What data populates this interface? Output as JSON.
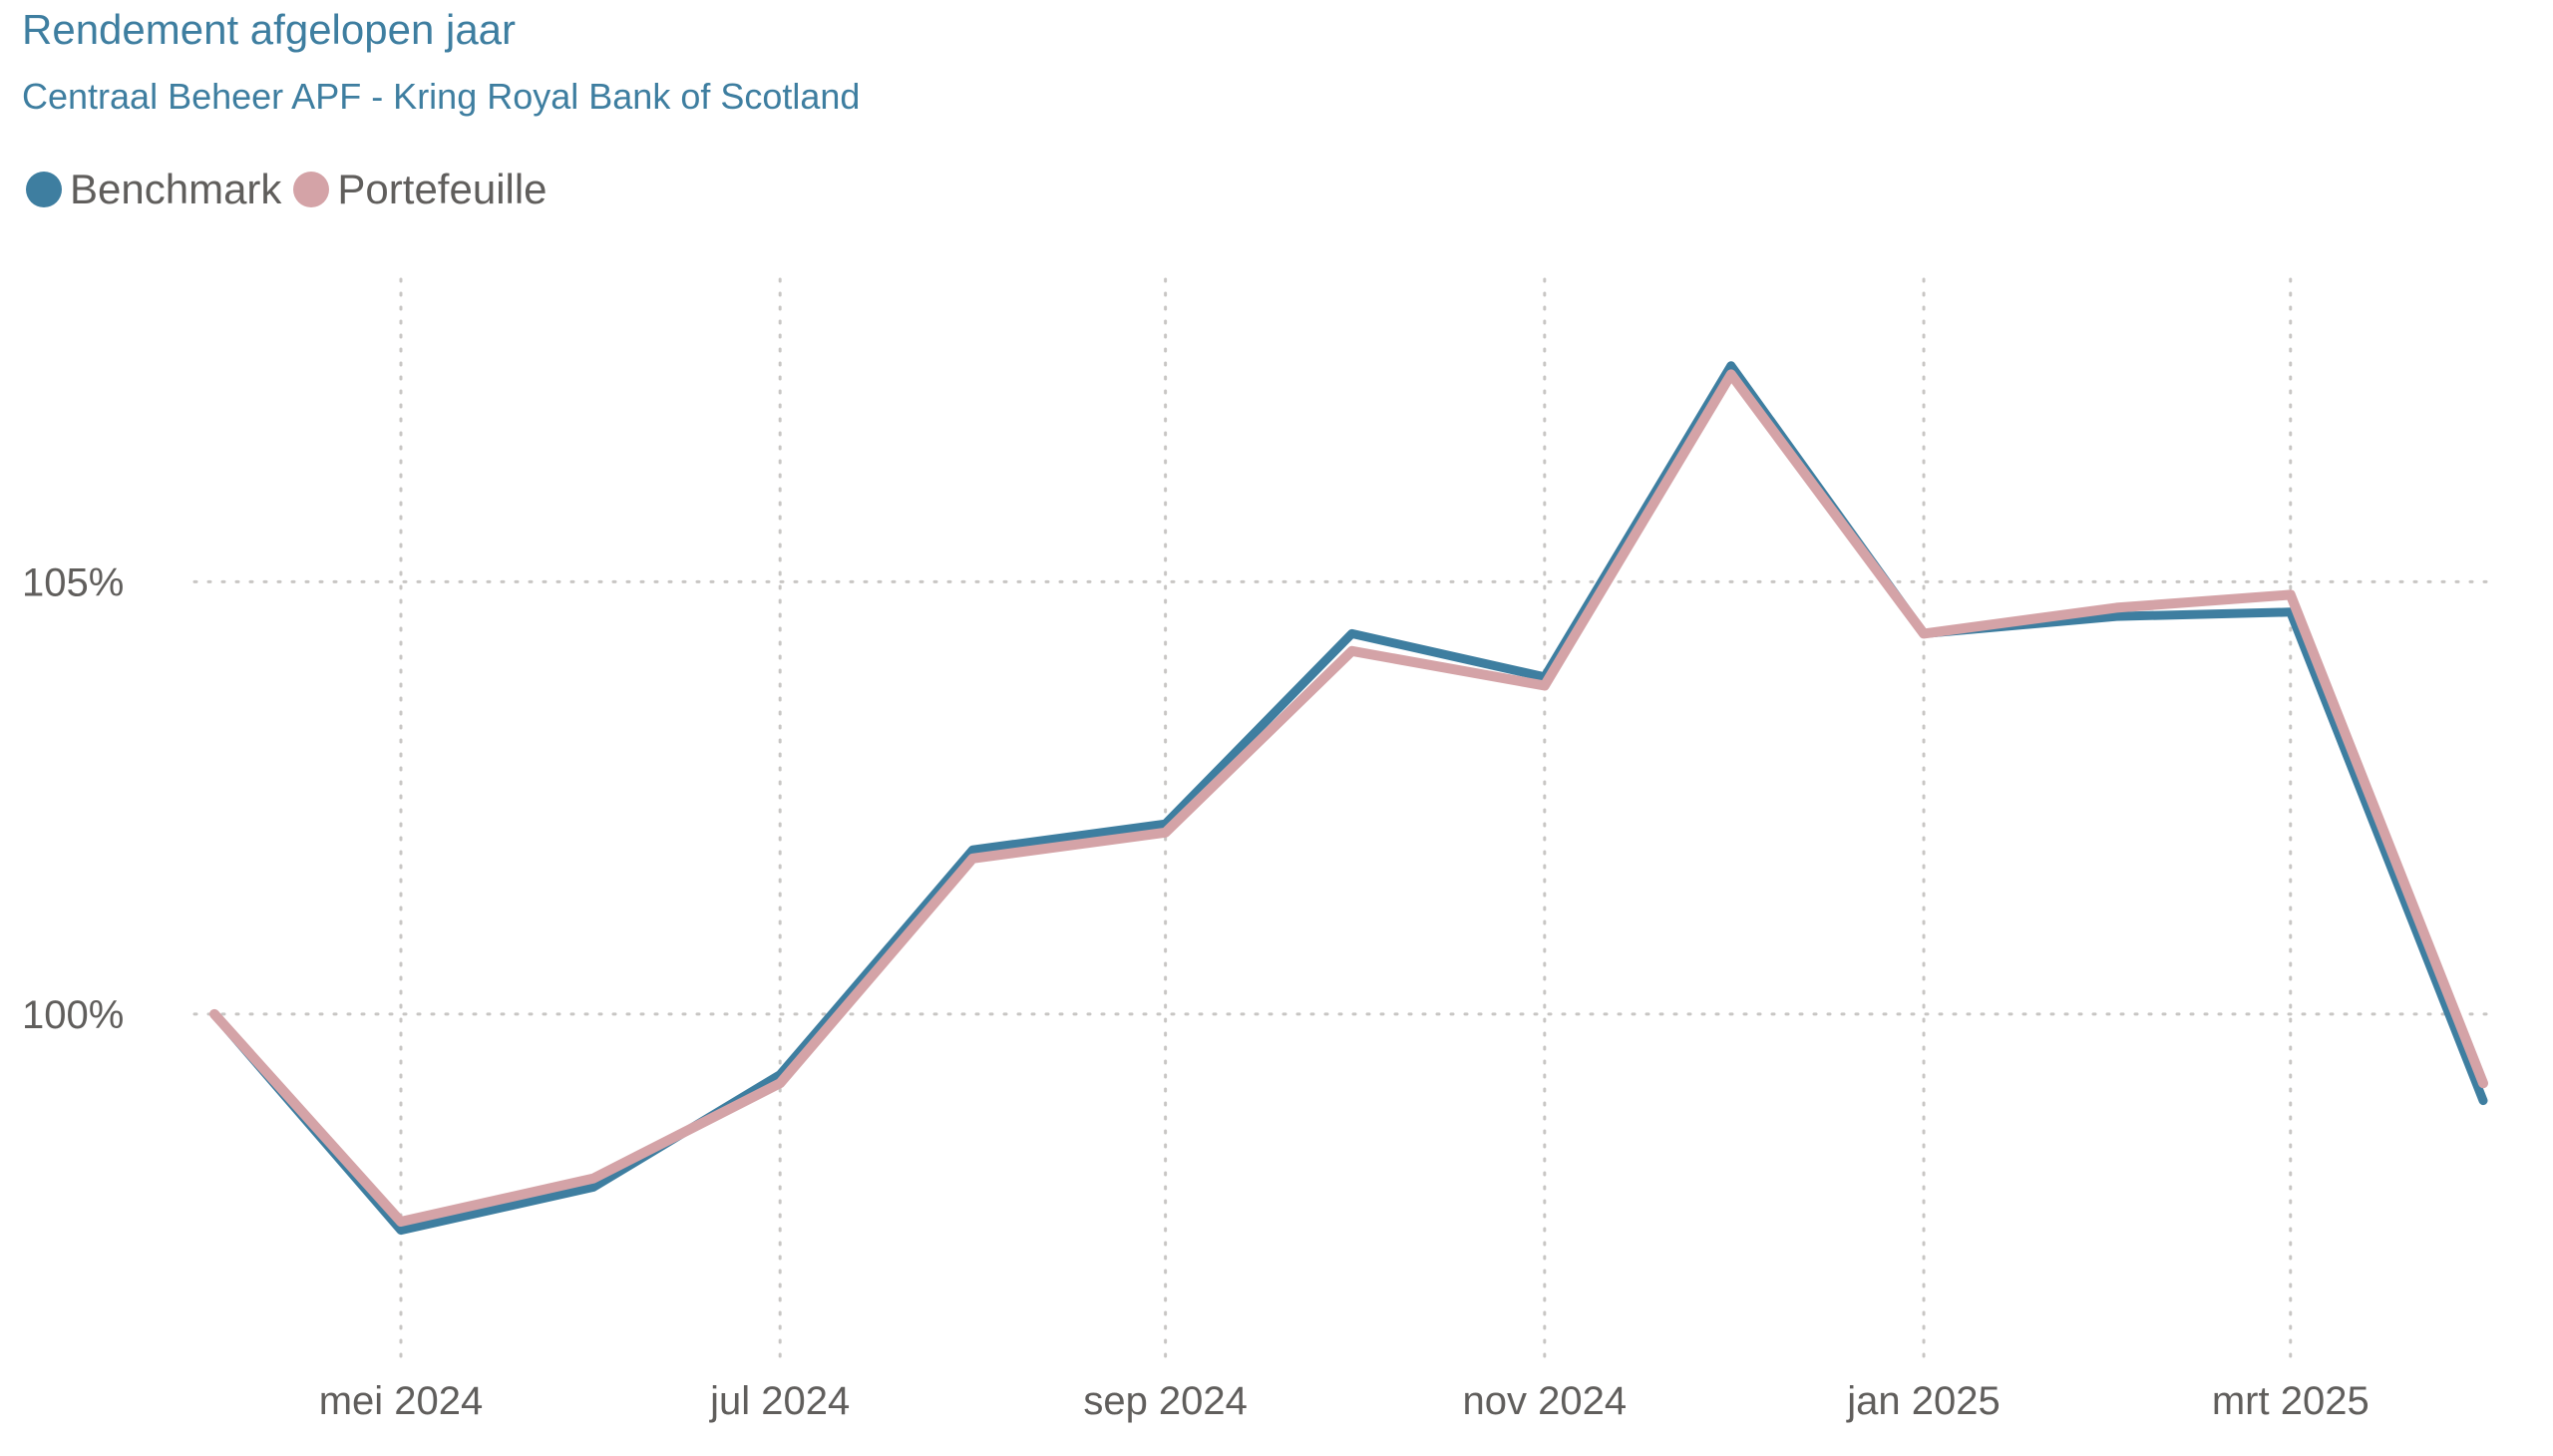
{
  "colors": {
    "benchmark": "#3e7ea0",
    "portefeuille": "#d4a3a7",
    "title": "#3e7ea0",
    "text": "#605e5c",
    "grid": "#c8c6c4"
  },
  "title": "Rendement afgelopen jaar",
  "subtitle": "Centraal Beheer APF - Kring Royal Bank of Scotland",
  "chart_data": {
    "type": "line",
    "x": [
      "2024-03-31",
      "2024-04-30",
      "2024-05-31",
      "2024-06-30",
      "2024-07-31",
      "2024-08-31",
      "2024-09-30",
      "2024-10-31",
      "2024-11-30",
      "2024-12-31",
      "2025-01-31",
      "2025-02-28",
      "2025-03-31"
    ],
    "series": [
      {
        "name": "Benchmark",
        "color": "#3e7ea0",
        "values": [
          100.0,
          97.5,
          98.0,
          99.3,
          101.9,
          102.2,
          104.4,
          103.9,
          107.5,
          104.4,
          104.6,
          104.65,
          99.0
        ]
      },
      {
        "name": "Portefeuille",
        "color": "#d4a3a7",
        "values": [
          100.0,
          97.6,
          98.1,
          99.2,
          101.8,
          102.1,
          104.2,
          103.8,
          107.4,
          104.4,
          104.7,
          104.85,
          99.2
        ]
      }
    ],
    "x_ticks": [
      {
        "date": "2024-04-30",
        "label": "mei 2024"
      },
      {
        "date": "2024-06-30",
        "label": "jul 2024"
      },
      {
        "date": "2024-08-31",
        "label": "sep 2024"
      },
      {
        "date": "2024-10-31",
        "label": "nov 2024"
      },
      {
        "date": "2024-12-31",
        "label": "jan 2025"
      },
      {
        "date": "2025-02-28",
        "label": "mrt 2025"
      }
    ],
    "y_ticks": [
      {
        "value": 100,
        "label": "100%"
      },
      {
        "value": 105,
        "label": "105%"
      }
    ],
    "ylim": [
      96.1,
      108.5
    ],
    "xlim": [
      "2024-03-31",
      "2025-03-31"
    ],
    "grid": true,
    "legend_position": "top-left"
  }
}
